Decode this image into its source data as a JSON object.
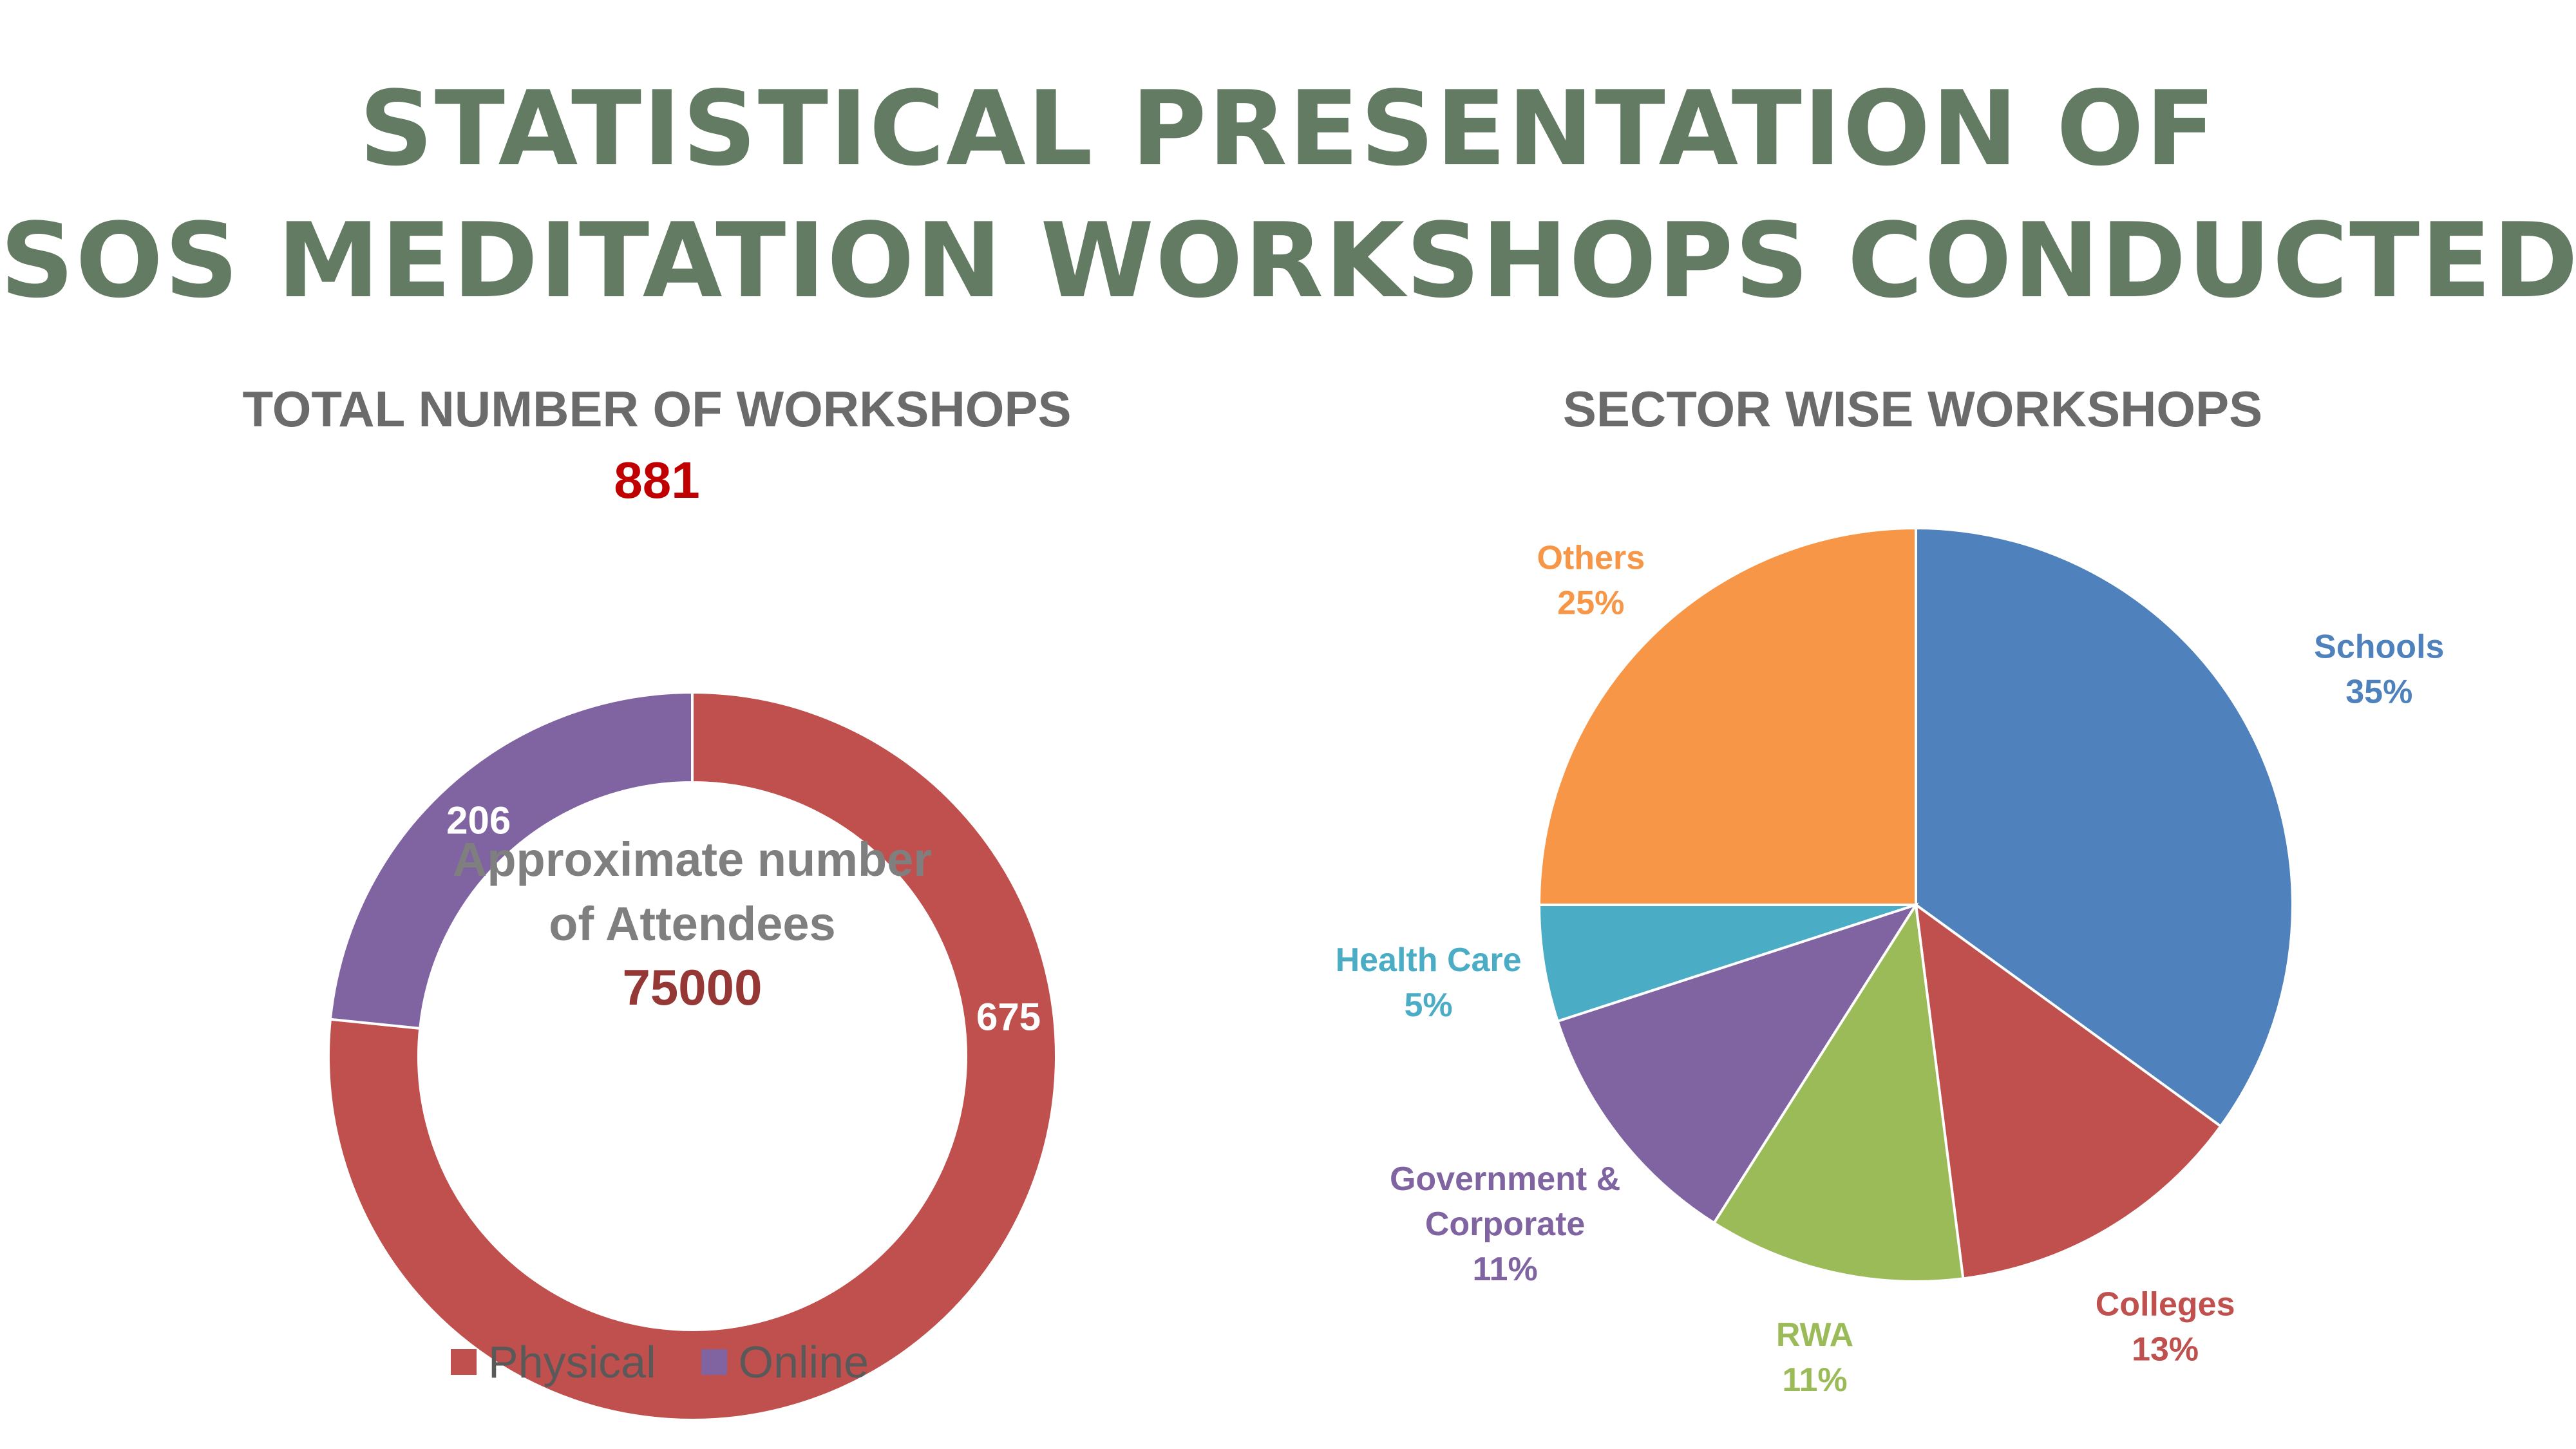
{
  "title_line_1": "STATISTICAL PRESENTATION OF",
  "title_line_2": "SOS MEDITATION WORKSHOPS  CONDUCTED",
  "chart_data": [
    {
      "type": "pie",
      "donut": true,
      "title": "TOTAL NUMBER OF WORKSHOPS",
      "total": "881",
      "center_text_line_1": "Approximate number",
      "center_text_line_2": "of Attendees",
      "center_value": "75000",
      "series": [
        {
          "name": "Physical",
          "value": 675,
          "label": "675",
          "color": "#c0504d"
        },
        {
          "name": "Online",
          "value": 206,
          "label": "206",
          "color": "#8064a2"
        }
      ],
      "legend_position": "bottom"
    },
    {
      "type": "pie",
      "title": "SECTOR WISE WORKSHOPS",
      "slices": [
        {
          "name": "Schools",
          "value": 35,
          "label": "35%",
          "color": "#4f81bd"
        },
        {
          "name": "Colleges",
          "value": 13,
          "label": "13%",
          "color": "#c0504d"
        },
        {
          "name": "RWA",
          "value": 11,
          "label": "11%",
          "color": "#9bbb59"
        },
        {
          "name": "Government & Corporate",
          "value": 11,
          "label": "11%",
          "color": "#8064a2"
        },
        {
          "name": "Health Care",
          "value": 5,
          "label": "5%",
          "color": "#4bacc6"
        },
        {
          "name": "Others",
          "value": 25,
          "label": "25%",
          "color": "#f79646"
        }
      ]
    }
  ]
}
